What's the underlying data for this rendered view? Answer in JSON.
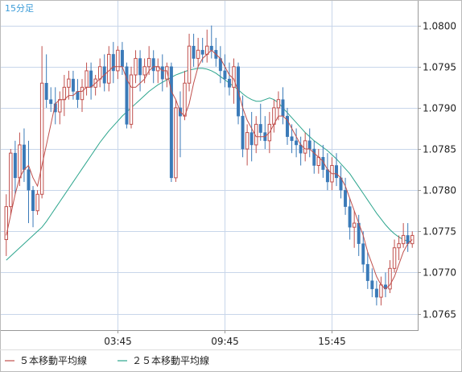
{
  "period_label": "15分足",
  "legend": [
    {
      "label": "５本移動平均線",
      "color": "#c0504d"
    },
    {
      "label": "２５本移動平均線",
      "color": "#2ca58d"
    }
  ],
  "colors": {
    "up_candle": "#c0504d",
    "down_candle": "#3a7ab8",
    "ma5": "#c0504d",
    "ma25": "#2ca58d",
    "grid": "#c8d6ea",
    "frame": "#999999"
  },
  "chart_data": {
    "type": "candlestick",
    "title": "",
    "xlabel": "",
    "ylabel": "",
    "ylim": [
      1.0763,
      1.0803
    ],
    "y_ticks": [
      "1.0800",
      "1.0795",
      "1.0790",
      "1.0785",
      "1.0780",
      "1.0775",
      "1.0770",
      "1.0765"
    ],
    "x_ticks": [
      {
        "label": "03:45",
        "index": 25
      },
      {
        "label": "09:45",
        "index": 49
      },
      {
        "label": "15:45",
        "index": 73
      }
    ],
    "grid": true,
    "legend_position": "bottom-left",
    "candles": [
      [
        1.0774,
        1.07795,
        1.0772,
        1.0778
      ],
      [
        1.0778,
        1.0785,
        1.0777,
        1.07845
      ],
      [
        1.07845,
        1.0786,
        1.07795,
        1.07815
      ],
      [
        1.07815,
        1.0787,
        1.07805,
        1.07855
      ],
      [
        1.07855,
        1.07875,
        1.0781,
        1.07825
      ],
      [
        1.07825,
        1.0786,
        1.0776,
        1.078
      ],
      [
        1.078,
        1.07805,
        1.07755,
        1.07775
      ],
      [
        1.07775,
        1.078,
        1.0777,
        1.07795
      ],
      [
        1.07795,
        1.07975,
        1.0779,
        1.0793
      ],
      [
        1.0793,
        1.07965,
        1.079,
        1.0791
      ],
      [
        1.0791,
        1.07925,
        1.07895,
        1.07905
      ],
      [
        1.07905,
        1.07925,
        1.0788,
        1.07895
      ],
      [
        1.07895,
        1.0792,
        1.0788,
        1.0791
      ],
      [
        1.0791,
        1.0794,
        1.0789,
        1.07925
      ],
      [
        1.07925,
        1.07945,
        1.0791,
        1.07935
      ],
      [
        1.07935,
        1.07945,
        1.0791,
        1.0792
      ],
      [
        1.0792,
        1.07935,
        1.079,
        1.0791
      ],
      [
        1.0791,
        1.07935,
        1.07895,
        1.07925
      ],
      [
        1.07925,
        1.07955,
        1.07915,
        1.07945
      ],
      [
        1.07945,
        1.07955,
        1.0791,
        1.07925
      ],
      [
        1.07925,
        1.0794,
        1.07915,
        1.07935
      ],
      [
        1.07935,
        1.0796,
        1.07925,
        1.0795
      ],
      [
        1.0795,
        1.07965,
        1.0792,
        1.0793
      ],
      [
        1.0793,
        1.07975,
        1.0792,
        1.07965
      ],
      [
        1.07965,
        1.0798,
        1.0793,
        1.07945
      ],
      [
        1.07945,
        1.07975,
        1.07935,
        1.0797
      ],
      [
        1.0797,
        1.0798,
        1.0794,
        1.0795
      ],
      [
        1.0795,
        1.07955,
        1.07875,
        1.0788
      ],
      [
        1.0788,
        1.0795,
        1.07875,
        1.0794
      ],
      [
        1.0794,
        1.0797,
        1.0793,
        1.0796
      ],
      [
        1.0796,
        1.0797,
        1.0792,
        1.0794
      ],
      [
        1.0794,
        1.0796,
        1.0793,
        1.0795
      ],
      [
        1.0795,
        1.07975,
        1.0794,
        1.0796
      ],
      [
        1.0796,
        1.0797,
        1.0793,
        1.07945
      ],
      [
        1.07945,
        1.0796,
        1.0793,
        1.0795
      ],
      [
        1.0795,
        1.07965,
        1.0792,
        1.07935
      ],
      [
        1.07935,
        1.07955,
        1.07925,
        1.0795
      ],
      [
        1.0795,
        1.07955,
        1.0781,
        1.07815
      ],
      [
        1.07815,
        1.0791,
        1.0781,
        1.079
      ],
      [
        1.079,
        1.0792,
        1.0784,
        1.0789
      ],
      [
        1.0789,
        1.07945,
        1.07885,
        1.0793
      ],
      [
        1.0793,
        1.0799,
        1.0792,
        1.07975
      ],
      [
        1.07975,
        1.0799,
        1.0795,
        1.0796
      ],
      [
        1.0796,
        1.07985,
        1.0795,
        1.0797
      ],
      [
        1.0797,
        1.07985,
        1.07955,
        1.07965
      ],
      [
        1.07965,
        1.07995,
        1.07955,
        1.07975
      ],
      [
        1.07975,
        1.08,
        1.0796,
        1.0797
      ],
      [
        1.0797,
        1.07985,
        1.0795,
        1.0796
      ],
      [
        1.0796,
        1.07975,
        1.0793,
        1.07945
      ],
      [
        1.07945,
        1.07965,
        1.07925,
        1.07935
      ],
      [
        1.07935,
        1.07955,
        1.07915,
        1.07925
      ],
      [
        1.07925,
        1.0796,
        1.07905,
        1.0795
      ],
      [
        1.0795,
        1.07955,
        1.0788,
        1.0789
      ],
      [
        1.0789,
        1.07915,
        1.0784,
        1.0785
      ],
      [
        1.0785,
        1.0788,
        1.0783,
        1.0787
      ],
      [
        1.0787,
        1.07895,
        1.07835,
        1.07855
      ],
      [
        1.07855,
        1.0789,
        1.07845,
        1.0788
      ],
      [
        1.0788,
        1.07905,
        1.0786,
        1.0787
      ],
      [
        1.0787,
        1.0789,
        1.0785,
        1.0786
      ],
      [
        1.0786,
        1.07895,
        1.07845,
        1.0788
      ],
      [
        1.0788,
        1.0791,
        1.0787,
        1.079
      ],
      [
        1.079,
        1.0792,
        1.07885,
        1.0791
      ],
      [
        1.0791,
        1.07925,
        1.0788,
        1.0789
      ],
      [
        1.0789,
        1.079,
        1.07855,
        1.07865
      ],
      [
        1.07865,
        1.0788,
        1.07845,
        1.0786
      ],
      [
        1.0786,
        1.07875,
        1.0784,
        1.07855
      ],
      [
        1.07855,
        1.07865,
        1.0783,
        1.07845
      ],
      [
        1.07845,
        1.0787,
        1.07835,
        1.0786
      ],
      [
        1.0786,
        1.07875,
        1.0784,
        1.0785
      ],
      [
        1.0785,
        1.0786,
        1.0782,
        1.0783
      ],
      [
        1.0783,
        1.0785,
        1.0782,
        1.0784
      ],
      [
        1.0784,
        1.07855,
        1.07815,
        1.07825
      ],
      [
        1.07825,
        1.07845,
        1.078,
        1.0781
      ],
      [
        1.0781,
        1.0784,
        1.078,
        1.0783
      ],
      [
        1.0783,
        1.07845,
        1.07805,
        1.07815
      ],
      [
        1.07815,
        1.0783,
        1.0779,
        1.078
      ],
      [
        1.078,
        1.07815,
        1.0777,
        1.0778
      ],
      [
        1.0778,
        1.0779,
        1.0774,
        1.07755
      ],
      [
        1.07755,
        1.07775,
        1.0773,
        1.0776
      ],
      [
        1.0776,
        1.0777,
        1.0772,
        1.07735
      ],
      [
        1.07735,
        1.0775,
        1.077,
        1.0771
      ],
      [
        1.0771,
        1.07725,
        1.0768,
        1.0769
      ],
      [
        1.0769,
        1.07705,
        1.0767,
        1.0768
      ],
      [
        1.0768,
        1.0769,
        1.0766,
        1.0767
      ],
      [
        1.0767,
        1.07695,
        1.0766,
        1.07685
      ],
      [
        1.07685,
        1.077,
        1.0767,
        1.0768
      ],
      [
        1.0768,
        1.07715,
        1.07675,
        1.07705
      ],
      [
        1.07705,
        1.0774,
        1.077,
        1.0773
      ],
      [
        1.0773,
        1.07745,
        1.07715,
        1.07735
      ],
      [
        1.07735,
        1.0776,
        1.0773,
        1.07745
      ],
      [
        1.07745,
        1.0776,
        1.07725,
        1.07735
      ],
      [
        1.07735,
        1.0775,
        1.0773,
        1.07745
      ]
    ],
    "ma5": [
      1.07745,
      1.0777,
      1.07795,
      1.07815,
      1.07825,
      1.0783,
      1.07815,
      1.07805,
      1.0783,
      1.07855,
      1.0788,
      1.07905,
      1.0791,
      1.0791,
      1.07915,
      1.07915,
      1.0792,
      1.0792,
      1.07925,
      1.07925,
      1.0793,
      1.07935,
      1.0794,
      1.07945,
      1.0795,
      1.0795,
      1.0795,
      1.07935,
      1.07925,
      1.07925,
      1.0793,
      1.07935,
      1.07945,
      1.0795,
      1.0795,
      1.07945,
      1.07945,
      1.0792,
      1.0791,
      1.07895,
      1.0789,
      1.07905,
      1.0793,
      1.0795,
      1.0796,
      1.07965,
      1.0797,
      1.07965,
      1.0796,
      1.0795,
      1.0794,
      1.07935,
      1.0792,
      1.079,
      1.07885,
      1.07875,
      1.07865,
      1.07865,
      1.07865,
      1.0787,
      1.0788,
      1.0789,
      1.0789,
      1.07885,
      1.07875,
      1.07865,
      1.07855,
      1.0785,
      1.0785,
      1.07845,
      1.0784,
      1.07835,
      1.07825,
      1.0782,
      1.0782,
      1.07815,
      1.07805,
      1.0779,
      1.07775,
      1.0776,
      1.07745,
      1.07725,
      1.0771,
      1.07695,
      1.07685,
      1.0768,
      1.07685,
      1.07695,
      1.0771,
      1.07725,
      1.07735,
      1.0774
    ],
    "ma25": [
      1.07715,
      1.0772,
      1.07725,
      1.0773,
      1.07735,
      1.0774,
      1.07745,
      1.0775,
      1.07755,
      1.07762,
      1.0777,
      1.07778,
      1.07786,
      1.07794,
      1.07802,
      1.0781,
      1.07818,
      1.07826,
      1.07834,
      1.07842,
      1.0785,
      1.07858,
      1.07865,
      1.07872,
      1.07878,
      1.07884,
      1.0789,
      1.07895,
      1.079,
      1.07905,
      1.0791,
      1.07915,
      1.0792,
      1.07924,
      1.07928,
      1.07931,
      1.07934,
      1.07937,
      1.0794,
      1.07942,
      1.07944,
      1.07946,
      1.07947,
      1.07948,
      1.07948,
      1.07947,
      1.07945,
      1.07942,
      1.07938,
      1.07934,
      1.0793,
      1.07926,
      1.07922,
      1.07917,
      1.07913,
      1.0791,
      1.07908,
      1.07908,
      1.0791,
      1.07912,
      1.0791,
      1.07906,
      1.079,
      1.07894,
      1.07888,
      1.07882,
      1.07876,
      1.0787,
      1.07865,
      1.0786,
      1.07856,
      1.07852,
      1.07848,
      1.07843,
      1.07838,
      1.07832,
      1.07826,
      1.0782,
      1.07812,
      1.07804,
      1.07796,
      1.07788,
      1.0778,
      1.07772,
      1.07765,
      1.07758,
      1.07752,
      1.07747,
      1.07743,
      1.0774,
      1.07738,
      1.07737
    ]
  }
}
